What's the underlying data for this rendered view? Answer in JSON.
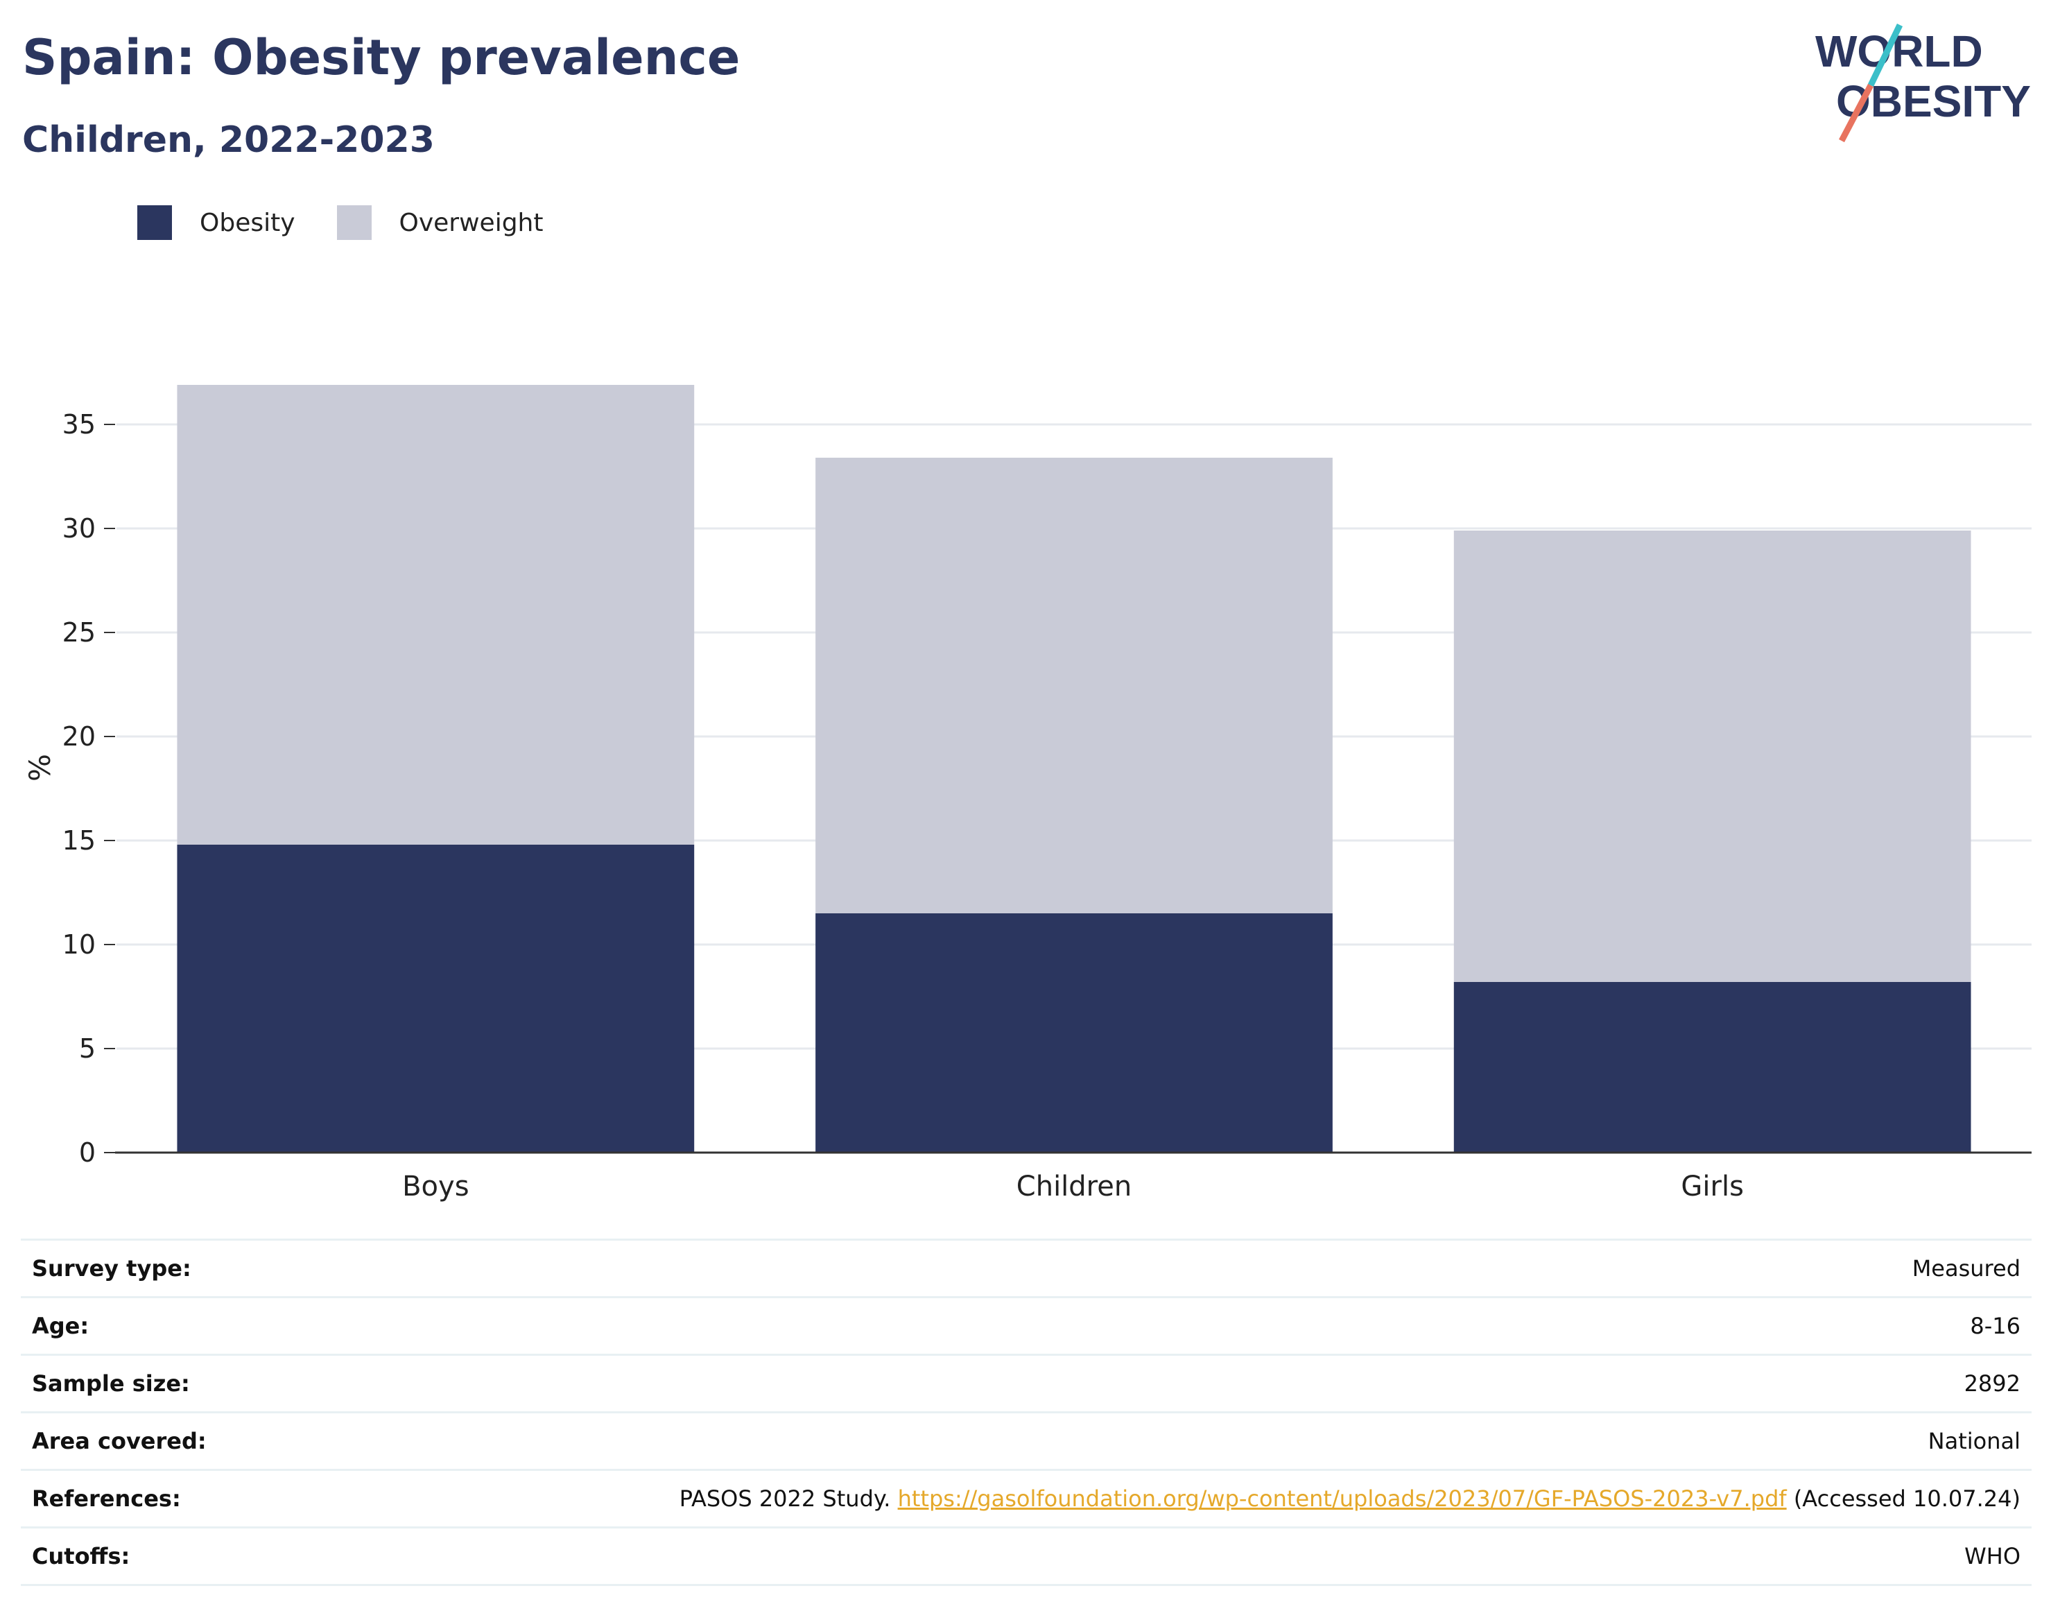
{
  "header": {
    "title": "Spain: Obesity prevalence",
    "subtitle": "Children, 2022-2023"
  },
  "logo": {
    "line1": "WORLD",
    "line2": "OBESITY",
    "colors": {
      "navy": "#2b365f",
      "teal": "#3bbfc9",
      "coral": "#e8735f"
    }
  },
  "colors": {
    "obesity": "#2b365f",
    "overweight": "#c9cbd7",
    "grid": "#e6e9ee",
    "axis": "#333333"
  },
  "chart_data": {
    "type": "bar",
    "stacked": true,
    "categories": [
      "Boys",
      "Children",
      "Girls"
    ],
    "series": [
      {
        "name": "Obesity",
        "values": [
          14.8,
          11.5,
          8.2
        ]
      },
      {
        "name": "Overweight",
        "values": [
          22.1,
          21.9,
          21.7
        ]
      }
    ],
    "ylabel": "%",
    "ylim": [
      0,
      37
    ],
    "yticks": [
      0,
      5,
      10,
      15,
      20,
      25,
      30,
      35
    ],
    "grid": true,
    "legend_position": "top-left"
  },
  "info_table": [
    {
      "key": "Survey type:",
      "value": "Measured"
    },
    {
      "key": "Age:",
      "value": "8-16"
    },
    {
      "key": "Sample size:",
      "value": "2892"
    },
    {
      "key": "Area covered:",
      "value": "National"
    },
    {
      "key": "References:",
      "value_prefix": "PASOS 2022 Study. ",
      "link": "https://gasolfoundation.org/wp-content/uploads/2023/07/GF-PASOS-2023-v7.pdf",
      "value_suffix": " (Accessed 10.07.24)"
    },
    {
      "key": "Cutoffs:",
      "value": "WHO"
    }
  ]
}
